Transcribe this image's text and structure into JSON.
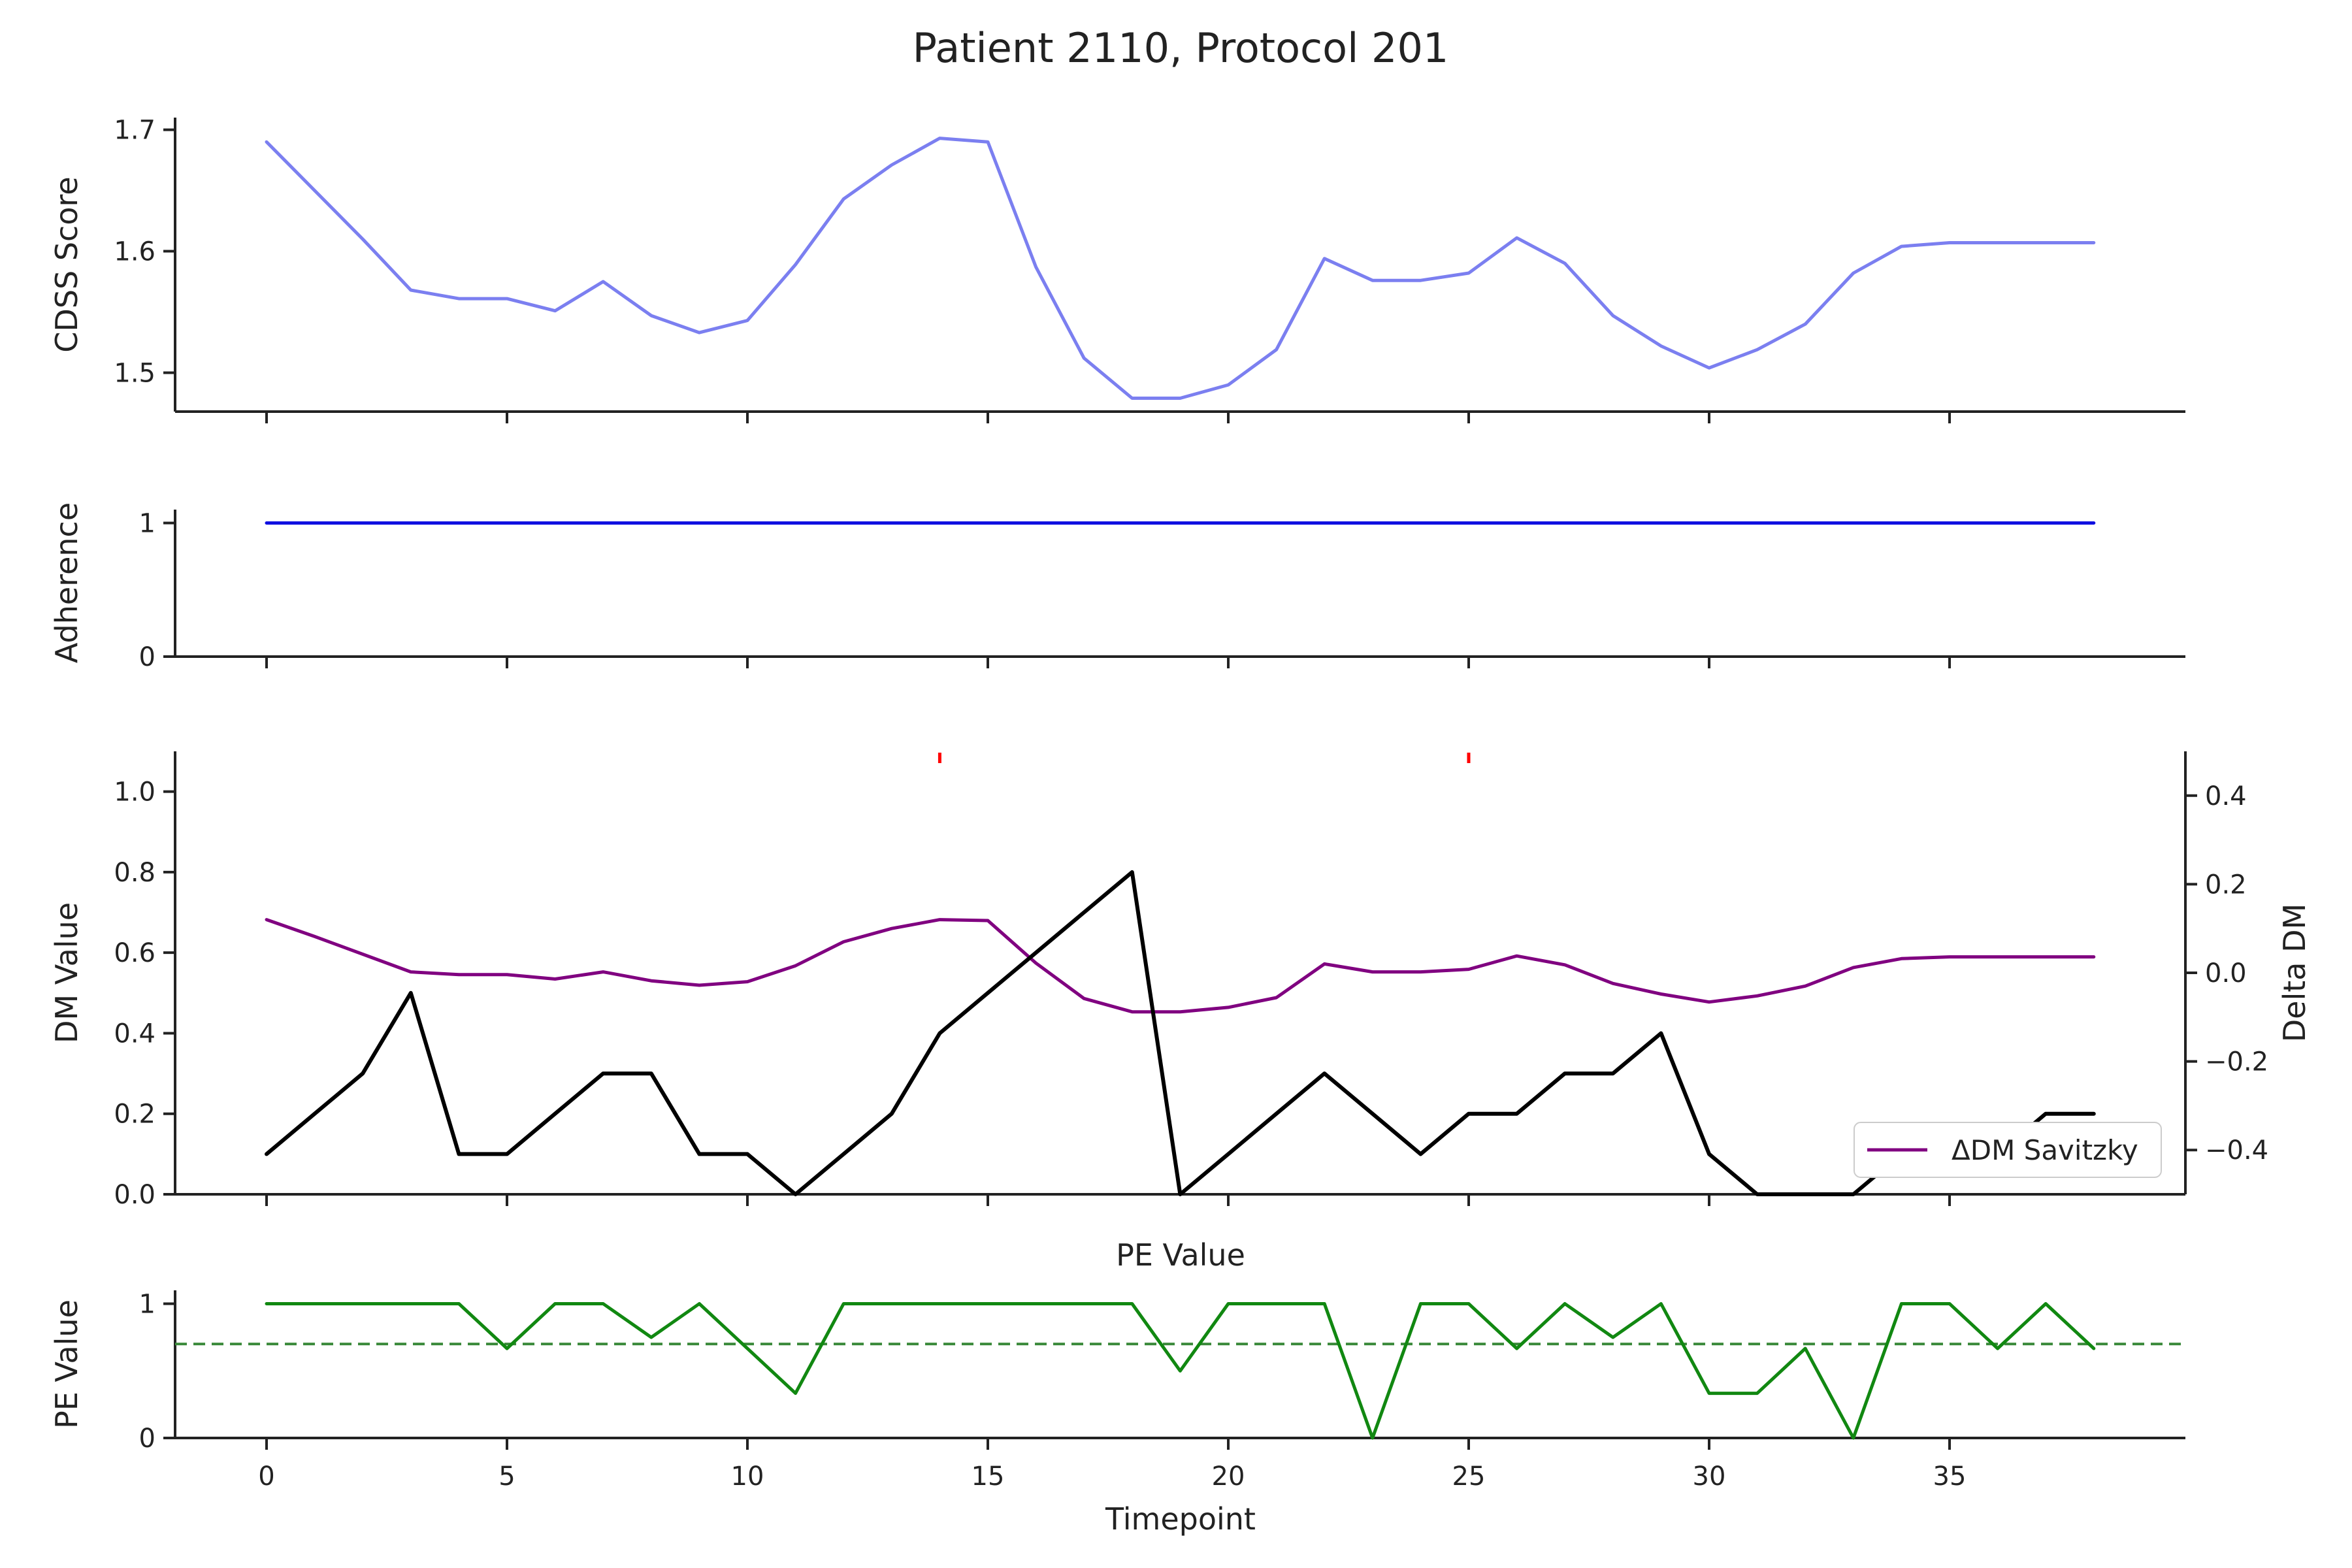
{
  "title": "Patient 2110, Protocol 201",
  "colors": {
    "cdss": "#7b7ff0",
    "adherence": "#1010e0",
    "dm": "#000000",
    "delta": "#800080",
    "pe": "#118811",
    "pe_threshold": "#3b8a3b",
    "event_marker": "#ff0000",
    "axis": "#222222"
  },
  "chart_data": [
    {
      "id": "cdss",
      "type": "line",
      "ylabel": "CDSS Score",
      "ylim": [
        1.468,
        1.71
      ],
      "yticks": [
        "1.5",
        "1.6",
        "1.7"
      ],
      "x": [
        0,
        1,
        2,
        3,
        4,
        5,
        6,
        7,
        8,
        9,
        10,
        11,
        12,
        13,
        14,
        15,
        16,
        17,
        18,
        19,
        20,
        21,
        22,
        23,
        24,
        25,
        26,
        27,
        28,
        29,
        30,
        31,
        32,
        33,
        34,
        35,
        36,
        37,
        38
      ],
      "series": [
        {
          "values": [
            1.69,
            1.65,
            1.61,
            1.568,
            1.561,
            1.561,
            1.551,
            1.575,
            1.547,
            1.533,
            1.543,
            1.589,
            1.643,
            1.671,
            1.693,
            1.69,
            1.587,
            1.512,
            1.479,
            1.479,
            1.49,
            1.519,
            1.594,
            1.576,
            1.576,
            1.582,
            1.611,
            1.59,
            1.547,
            1.522,
            1.504,
            1.519,
            1.54,
            1.582,
            1.604,
            1.607,
            1.607,
            1.607,
            1.607
          ]
        }
      ]
    },
    {
      "id": "adherence",
      "type": "line",
      "ylabel": "Adherence",
      "ylim": [
        0,
        1.1
      ],
      "yticks": [
        "0",
        "1"
      ],
      "x": [
        0,
        38
      ],
      "series": [
        {
          "values": [
            1,
            1
          ]
        }
      ]
    },
    {
      "id": "dm",
      "type": "line",
      "ylabel": "DM Value",
      "ylabel_right": "Delta DM",
      "ylim": [
        0,
        1.1
      ],
      "ylim_right": [
        -0.5,
        0.5
      ],
      "yticks": [
        "0.0",
        "0.2",
        "0.4",
        "0.6",
        "0.8",
        "1.0"
      ],
      "yticks_right": [
        "−0.4",
        "−0.2",
        "0.0",
        "0.2",
        "0.4"
      ],
      "x": [
        0,
        1,
        2,
        3,
        4,
        5,
        6,
        7,
        8,
        9,
        10,
        11,
        12,
        13,
        14,
        15,
        16,
        17,
        18,
        19,
        20,
        21,
        22,
        23,
        24,
        25,
        26,
        27,
        28,
        29,
        30,
        31,
        32,
        33,
        34,
        35,
        36,
        37,
        38
      ],
      "series": [
        {
          "values": [
            0.1,
            0.2,
            0.3,
            0.5,
            0.1,
            0.1,
            0.2,
            0.3,
            0.3,
            0.1,
            0.1,
            0.0,
            0.1,
            0.2,
            0.4,
            0.5,
            0.6,
            0.7,
            0.8,
            0.0,
            0.1,
            0.2,
            0.3,
            0.2,
            0.1,
            0.2,
            0.2,
            0.3,
            0.3,
            0.4,
            0.1,
            0.0,
            0.0,
            0.0,
            0.1,
            0.1,
            0.1,
            0.2,
            0.2
          ]
        },
        {
          "name": "ΔDM Savitzky",
          "axis": "right",
          "values": [
            0.12,
            0.082,
            0.042,
            0.002,
            -0.004,
            -0.004,
            -0.014,
            0.002,
            -0.018,
            -0.028,
            -0.02,
            0.016,
            0.07,
            0.1,
            0.12,
            0.118,
            0.022,
            -0.058,
            -0.088,
            -0.088,
            -0.078,
            -0.056,
            0.02,
            0.002,
            0.002,
            0.008,
            0.038,
            0.018,
            -0.024,
            -0.048,
            -0.066,
            -0.052,
            -0.03,
            0.012,
            0.032,
            0.036,
            0.036,
            0.036,
            0.036
          ]
        }
      ],
      "event_markers_x": [
        14,
        25
      ],
      "legend_position": "lower-right"
    },
    {
      "id": "pe",
      "type": "line",
      "title": "PE Value",
      "ylabel": "PE Value",
      "xlabel": "Timepoint",
      "ylim": [
        0,
        1.1
      ],
      "yticks": [
        "0",
        "1"
      ],
      "xticks": [
        "0",
        "5",
        "10",
        "15",
        "20",
        "25",
        "30",
        "35"
      ],
      "x": [
        0,
        1,
        2,
        3,
        4,
        5,
        6,
        7,
        8,
        9,
        10,
        11,
        12,
        13,
        14,
        15,
        16,
        17,
        18,
        19,
        20,
        21,
        22,
        23,
        24,
        25,
        26,
        27,
        28,
        29,
        30,
        31,
        32,
        33,
        34,
        35,
        36,
        37,
        38
      ],
      "series": [
        {
          "values": [
            1,
            1,
            1,
            1,
            1,
            0.667,
            1,
            1,
            0.75,
            1,
            0.667,
            0.333,
            1,
            1,
            1,
            1,
            1,
            1,
            1,
            0.5,
            1,
            1,
            1,
            0,
            1,
            1,
            0.667,
            1,
            0.75,
            1,
            0.333,
            0.333,
            0.667,
            0,
            1,
            1,
            0.667,
            1,
            0.667
          ]
        }
      ],
      "threshold": 0.7
    }
  ]
}
